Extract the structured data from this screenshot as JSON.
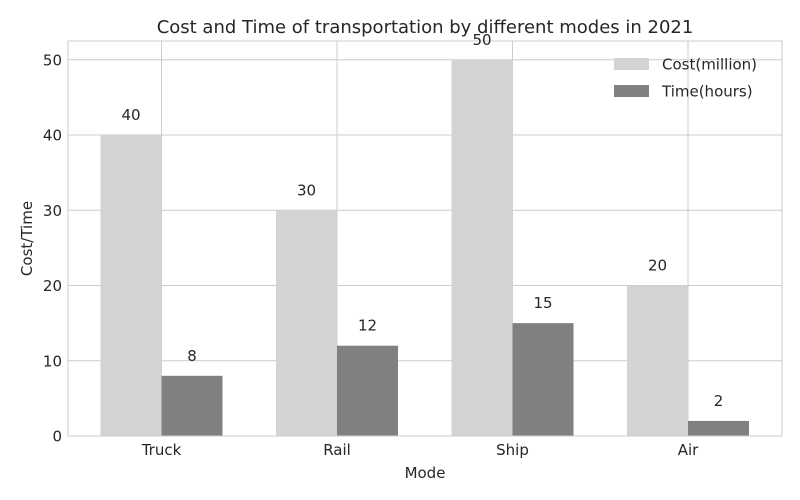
{
  "chart_data": {
    "type": "bar",
    "title": "Cost and Time of transportation by different modes in 2021",
    "xlabel": "Mode",
    "ylabel": "Cost/Time",
    "categories": [
      "Truck",
      "Rail",
      "Ship",
      "Air"
    ],
    "series": [
      {
        "name": "Cost(million)",
        "values": [
          40,
          30,
          50,
          20
        ],
        "color": "#d3d3d3"
      },
      {
        "name": "Time(hours)",
        "values": [
          8,
          12,
          15,
          2
        ],
        "color": "#808080"
      }
    ],
    "ylim": [
      0,
      52.5
    ],
    "yticks": [
      0,
      10,
      20,
      30,
      40,
      50
    ],
    "grid": true,
    "legend_position": "top-right"
  }
}
